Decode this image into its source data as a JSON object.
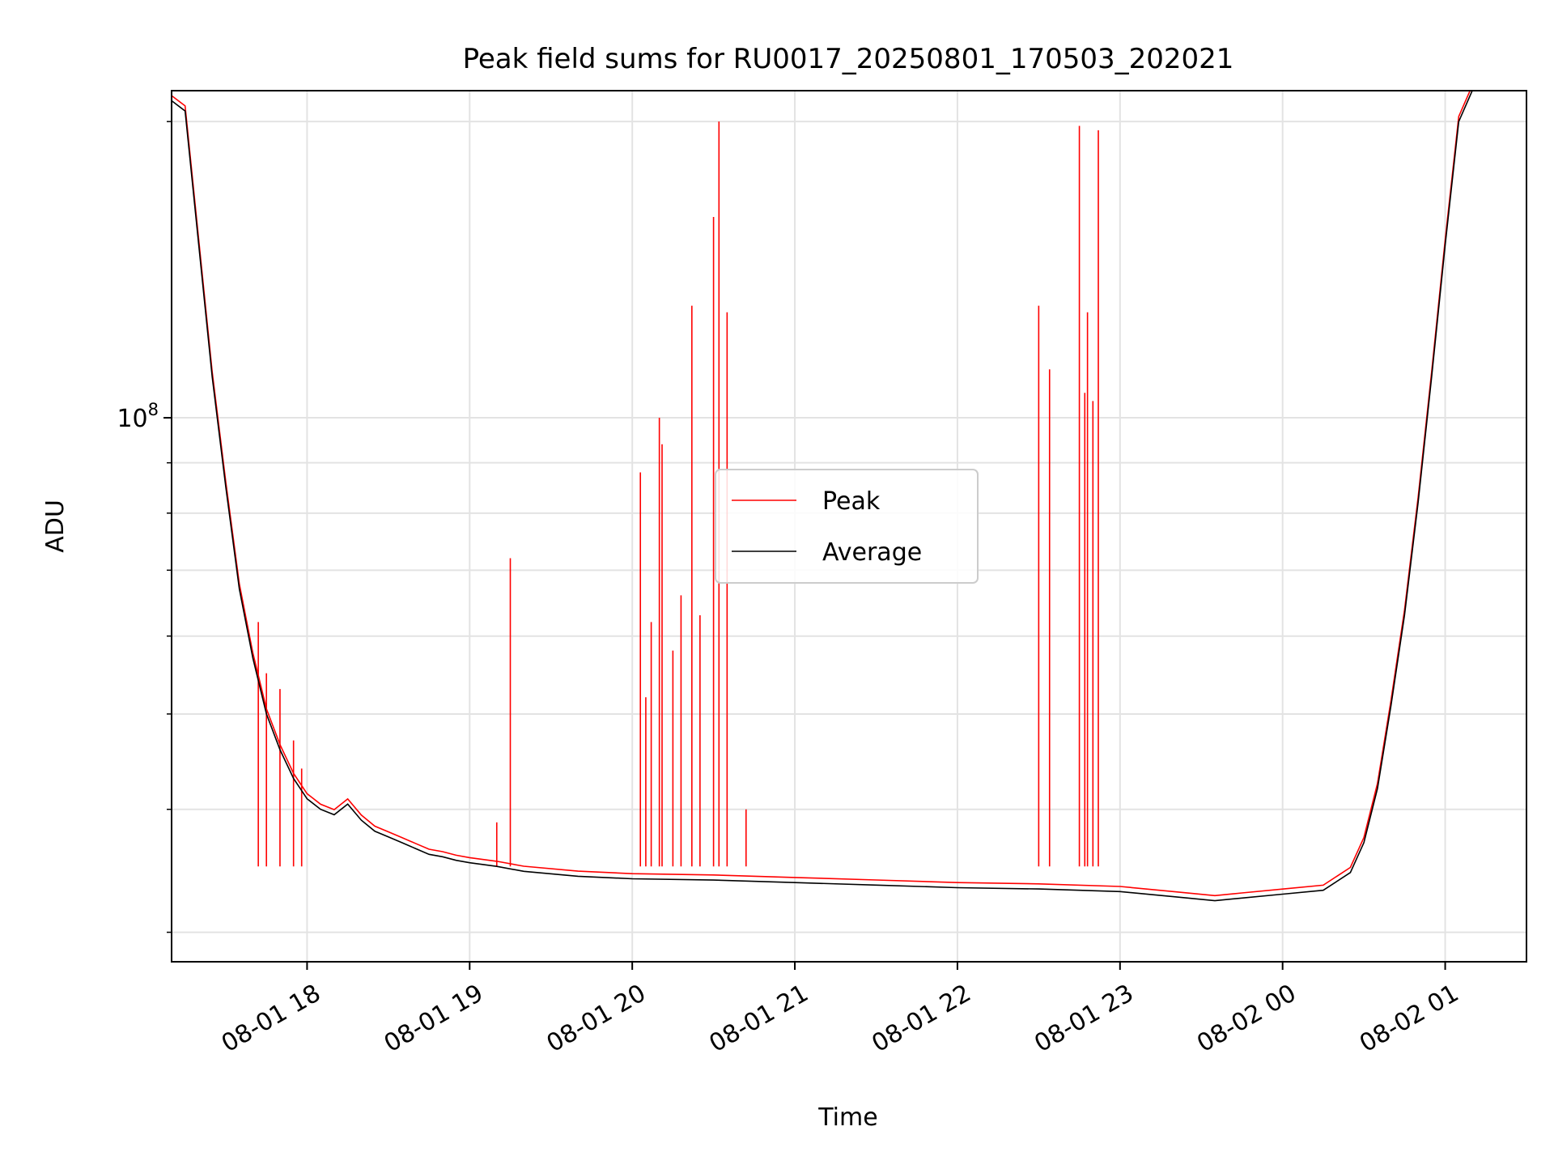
{
  "chart_data": {
    "type": "line",
    "title": "Peak field sums for RU0017_20250801_170503_202021",
    "xlabel": "Time",
    "ylabel": "ADU",
    "x_scale": "time",
    "y_scale": "log",
    "xlim": [
      "2025-08-01 17:10",
      "2025-08-02 01:30"
    ],
    "ylim": [
      28000000,
      215000000
    ],
    "grid": true,
    "legend_position": "center",
    "x_ticks": [
      {
        "t": "2025-08-01 18:00",
        "label": "08-01 18"
      },
      {
        "t": "2025-08-01 19:00",
        "label": "08-01 19"
      },
      {
        "t": "2025-08-01 20:00",
        "label": "08-01 20"
      },
      {
        "t": "2025-08-01 21:00",
        "label": "08-01 21"
      },
      {
        "t": "2025-08-01 22:00",
        "label": "08-01 22"
      },
      {
        "t": "2025-08-01 23:00",
        "label": "08-01 23"
      },
      {
        "t": "2025-08-02 00:00",
        "label": "08-02 00"
      },
      {
        "t": "2025-08-02 01:00",
        "label": "08-02 01"
      }
    ],
    "y_major_ticks": [
      {
        "value": 100000000,
        "base": "10",
        "exp": "8"
      }
    ],
    "y_minor_ticks": [
      30000000,
      40000000,
      50000000,
      60000000,
      70000000,
      80000000,
      90000000,
      200000000
    ],
    "series": [
      {
        "name": "Average",
        "color": "#000000",
        "x": [
          "2025-08-01 17:10",
          "2025-08-01 17:15",
          "2025-08-01 17:20",
          "2025-08-01 17:25",
          "2025-08-01 17:30",
          "2025-08-01 17:35",
          "2025-08-01 17:40",
          "2025-08-01 17:45",
          "2025-08-01 17:50",
          "2025-08-01 17:55",
          "2025-08-01 18:00",
          "2025-08-01 18:05",
          "2025-08-01 18:10",
          "2025-08-01 18:15",
          "2025-08-01 18:20",
          "2025-08-01 18:25",
          "2025-08-01 18:30",
          "2025-08-01 18:35",
          "2025-08-01 18:40",
          "2025-08-01 18:45",
          "2025-08-01 18:50",
          "2025-08-01 18:55",
          "2025-08-01 19:00",
          "2025-08-01 19:10",
          "2025-08-01 19:20",
          "2025-08-01 19:40",
          "2025-08-01 20:00",
          "2025-08-01 20:30",
          "2025-08-01 21:00",
          "2025-08-01 21:30",
          "2025-08-01 22:00",
          "2025-08-01 22:30",
          "2025-08-01 23:00",
          "2025-08-01 23:20",
          "2025-08-01 23:35",
          "2025-08-01 23:45",
          "2025-08-02 00:00",
          "2025-08-02 00:15",
          "2025-08-02 00:25",
          "2025-08-02 00:30",
          "2025-08-02 00:35",
          "2025-08-02 00:40",
          "2025-08-02 00:45",
          "2025-08-02 00:50",
          "2025-08-02 00:55",
          "2025-08-02 01:00",
          "2025-08-02 01:05",
          "2025-08-02 01:10",
          "2025-08-02 01:15",
          "2025-08-02 01:20"
        ],
        "values": [
          210000000,
          205000000,
          150000000,
          110000000,
          85000000,
          67000000,
          57000000,
          50000000,
          46000000,
          43000000,
          41000000,
          40000000,
          39500000,
          40500000,
          39000000,
          38000000,
          37500000,
          37000000,
          36500000,
          36000000,
          35800000,
          35500000,
          35300000,
          35000000,
          34600000,
          34200000,
          34000000,
          33900000,
          33700000,
          33500000,
          33300000,
          33200000,
          33000000,
          32600000,
          32300000,
          32500000,
          32800000,
          33100000,
          34500000,
          37000000,
          42000000,
          51000000,
          63000000,
          82000000,
          110000000,
          150000000,
          200000000,
          215000000,
          215000000,
          215000000
        ]
      },
      {
        "name": "Peak",
        "color": "#ff0000",
        "spikes": [
          {
            "t": "2025-08-01 17:42",
            "value": 62000000
          },
          {
            "t": "2025-08-01 17:45",
            "value": 55000000
          },
          {
            "t": "2025-08-01 17:50",
            "value": 53000000
          },
          {
            "t": "2025-08-01 17:55",
            "value": 47000000
          },
          {
            "t": "2025-08-01 17:58",
            "value": 44000000
          },
          {
            "t": "2025-08-01 19:10",
            "value": 38800000
          },
          {
            "t": "2025-08-01 19:15",
            "value": 72000000
          },
          {
            "t": "2025-08-01 20:03",
            "value": 88000000
          },
          {
            "t": "2025-08-01 20:05",
            "value": 52000000
          },
          {
            "t": "2025-08-01 20:07",
            "value": 62000000
          },
          {
            "t": "2025-08-01 20:10",
            "value": 100000000
          },
          {
            "t": "2025-08-01 20:11",
            "value": 94000000
          },
          {
            "t": "2025-08-01 20:15",
            "value": 58000000
          },
          {
            "t": "2025-08-01 20:18",
            "value": 66000000
          },
          {
            "t": "2025-08-01 20:22",
            "value": 130000000
          },
          {
            "t": "2025-08-01 20:25",
            "value": 63000000
          },
          {
            "t": "2025-08-01 20:30",
            "value": 160000000
          },
          {
            "t": "2025-08-01 20:32",
            "value": 200000000
          },
          {
            "t": "2025-08-01 20:35",
            "value": 128000000
          },
          {
            "t": "2025-08-01 20:42",
            "value": 40000000
          },
          {
            "t": "2025-08-01 22:30",
            "value": 130000000
          },
          {
            "t": "2025-08-01 22:34",
            "value": 112000000
          },
          {
            "t": "2025-08-01 22:45",
            "value": 198000000
          },
          {
            "t": "2025-08-01 22:47",
            "value": 106000000
          },
          {
            "t": "2025-08-01 22:48",
            "value": 128000000
          },
          {
            "t": "2025-08-01 22:50",
            "value": 104000000
          },
          {
            "t": "2025-08-01 22:52",
            "value": 196000000
          }
        ]
      }
    ]
  }
}
